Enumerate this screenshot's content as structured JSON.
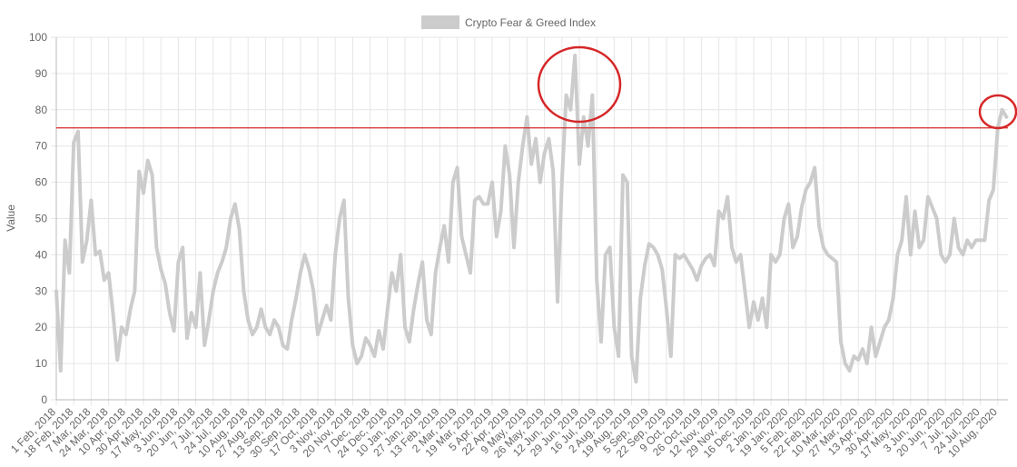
{
  "chart_data": {
    "type": "line",
    "y_label": "Value",
    "ylim": [
      0,
      100
    ],
    "yticks": [
      0,
      10,
      20,
      30,
      40,
      50,
      60,
      70,
      80,
      90,
      100
    ],
    "grid": true,
    "legend": "top",
    "reference_line": {
      "value": 75,
      "color": "#d62728"
    },
    "categories": [
      "1 Feb, 2018",
      null,
      null,
      null,
      "18 Feb, 2018",
      null,
      null,
      null,
      "7 Mar, 2018",
      null,
      null,
      null,
      "24 Mar, 2018",
      null,
      null,
      null,
      "10 Apr, 2018",
      null,
      null,
      null,
      "30 Apr, 2018",
      null,
      null,
      null,
      "17 May, 2018",
      null,
      null,
      null,
      "3 Jun, 2018",
      null,
      null,
      null,
      "20 Jun, 2018",
      null,
      null,
      null,
      "7 Jul, 2018",
      null,
      null,
      null,
      "24 Jul, 2018",
      null,
      null,
      null,
      "10 Aug, 2018",
      null,
      null,
      null,
      "27 Aug, 2018",
      null,
      null,
      null,
      "13 Sep, 2018",
      null,
      null,
      null,
      "30 Sep, 2018",
      null,
      null,
      null,
      "17 Oct, 2018",
      null,
      null,
      null,
      "3 Nov, 2018",
      null,
      null,
      null,
      "20 Nov, 2018",
      null,
      null,
      null,
      "7 Dec, 2018",
      null,
      null,
      null,
      "24 Dec, 2018",
      null,
      null,
      null,
      "10 Jan, 2019",
      null,
      null,
      null,
      "27 Jan, 2019",
      null,
      null,
      null,
      "13 Feb, 2019",
      null,
      null,
      null,
      "2 Mar, 2019",
      null,
      null,
      null,
      "19 Mar, 2019",
      null,
      null,
      null,
      "5 Apr, 2019",
      null,
      null,
      null,
      "22 Apr, 2019",
      null,
      null,
      null,
      "9 May, 2019",
      null,
      null,
      null,
      "26 May, 2019",
      null,
      null,
      null,
      "12 Jun, 2019",
      null,
      null,
      null,
      "29 Jun, 2019",
      null,
      null,
      null,
      "16 Jul, 2019",
      null,
      null,
      null,
      "2 Aug, 2019",
      null,
      null,
      null,
      "19 Aug, 2019",
      null,
      null,
      null,
      "5 Sep, 2019",
      null,
      null,
      null,
      "22 Sep, 2019",
      null,
      null,
      null,
      "9 Oct, 2019",
      null,
      null,
      null,
      "26 Oct, 2019",
      null,
      null,
      null,
      "12 Nov, 2019",
      null,
      null,
      null,
      "29 Nov, 2019",
      null,
      null,
      null,
      "16 Dec, 2019",
      null,
      null,
      null,
      "2 Jan, 2020",
      null,
      null,
      null,
      "19 Jan, 2020",
      null,
      null,
      null,
      "5 Feb, 2020",
      null,
      null,
      null,
      "22 Feb, 2020",
      null,
      null,
      null,
      "10 Mar, 2020",
      null,
      null,
      null,
      "27 Mar, 2020",
      null,
      null,
      null,
      "13 Apr, 2020",
      null,
      null,
      null,
      "30 Apr, 2020",
      null,
      null,
      null,
      "17 May, 2020",
      null,
      null,
      null,
      "3 Jun, 2020",
      null,
      null,
      null,
      "20 Jun, 2020",
      null,
      null,
      null,
      "7 Jul, 2020",
      null,
      null,
      null,
      "24 Jul, 2020",
      null,
      null,
      null,
      "10 Aug, 2020",
      null,
      null
    ],
    "series": [
      {
        "name": "Crypto Fear & Greed Index",
        "color": "#cccccc",
        "values": [
          30,
          8,
          44,
          35,
          71,
          74,
          38,
          44,
          55,
          40,
          41,
          33,
          35,
          24,
          11,
          20,
          18,
          25,
          30,
          63,
          57,
          66,
          62,
          42,
          36,
          32,
          24,
          19,
          38,
          42,
          17,
          24,
          20,
          35,
          15,
          22,
          30,
          35,
          38,
          42,
          50,
          54,
          47,
          30,
          22,
          18,
          20,
          25,
          20,
          18,
          22,
          20,
          15,
          14,
          22,
          28,
          35,
          40,
          36,
          30,
          18,
          22,
          26,
          22,
          40,
          50,
          55,
          28,
          15,
          10,
          12,
          17,
          15,
          12,
          19,
          14,
          25,
          35,
          30,
          40,
          20,
          16,
          25,
          32,
          38,
          22,
          18,
          35,
          42,
          48,
          38,
          60,
          64,
          45,
          40,
          35,
          55,
          56,
          54,
          54,
          60,
          45,
          52,
          70,
          62,
          42,
          60,
          70,
          78,
          65,
          72,
          60,
          68,
          72,
          63,
          27,
          60,
          84,
          80,
          95,
          65,
          78,
          70,
          84,
          33,
          16,
          40,
          42,
          20,
          12,
          62,
          60,
          12,
          5,
          28,
          37,
          43,
          42,
          40,
          36,
          25,
          12,
          40,
          39,
          40,
          38,
          36,
          33,
          37,
          39,
          40,
          37,
          52,
          50,
          56,
          42,
          38,
          40,
          30,
          20,
          27,
          22,
          28,
          20,
          40,
          38,
          40,
          50,
          54,
          42,
          45,
          53,
          58,
          60,
          64,
          48,
          42,
          40,
          39,
          38,
          16,
          10,
          8,
          12,
          11,
          14,
          10,
          20,
          12,
          16,
          20,
          22,
          28,
          40,
          44,
          56,
          40,
          52,
          42,
          44,
          56,
          53,
          50,
          40,
          38,
          40,
          50,
          42,
          40,
          44,
          42,
          44,
          44,
          44,
          55,
          58,
          75,
          80,
          78
        ]
      }
    ]
  }
}
